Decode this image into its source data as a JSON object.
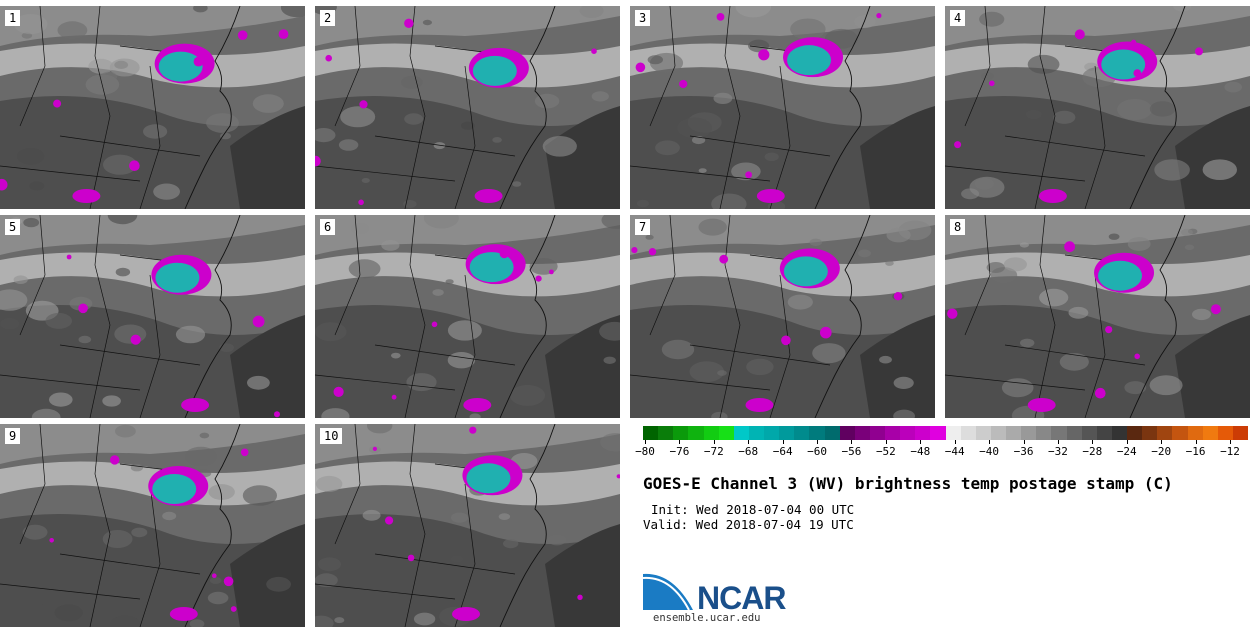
{
  "panels": [
    {
      "label": "1"
    },
    {
      "label": "2"
    },
    {
      "label": "3"
    },
    {
      "label": "4"
    },
    {
      "label": "5"
    },
    {
      "label": "6"
    },
    {
      "label": "7"
    },
    {
      "label": "8"
    },
    {
      "label": "9"
    },
    {
      "label": "10"
    }
  ],
  "colorbar": {
    "colors": [
      "#006400",
      "#0a7d0a",
      "#0b9a0b",
      "#0fb30f",
      "#12cc12",
      "#17e017",
      "#00c8c8",
      "#00b4b4",
      "#00a8aa",
      "#009a9c",
      "#008b8d",
      "#007b7d",
      "#006b6d",
      "#600060",
      "#7a007a",
      "#900090",
      "#a800a8",
      "#bb00bb",
      "#cc00cc",
      "#e000e0",
      "#eeeeee",
      "#dddddd",
      "#cccccc",
      "#bbbbbb",
      "#aaaaaa",
      "#999999",
      "#888888",
      "#777777",
      "#666666",
      "#555555",
      "#444444",
      "#333333",
      "#5a2810",
      "#7a3510",
      "#a04510",
      "#c45510",
      "#e06a10",
      "#f07a10",
      "#e55a08",
      "#cc3c05"
    ],
    "tick_labels": [
      "−80",
      "−76",
      "−72",
      "−68",
      "−64",
      "−60",
      "−56",
      "−52",
      "−48",
      "−44",
      "−40",
      "−36",
      "−32",
      "−28",
      "−24",
      "−20",
      "−16",
      "−12"
    ]
  },
  "title": "GOES-E Channel 3 (WV) brightness temp postage stamp (C)",
  "init": "Init: Wed 2018-07-04 00 UTC",
  "valid": "Valid: Wed 2018-07-04 19 UTC",
  "logo_text": "NCAR",
  "url": "ensemble.ucar.edu"
}
